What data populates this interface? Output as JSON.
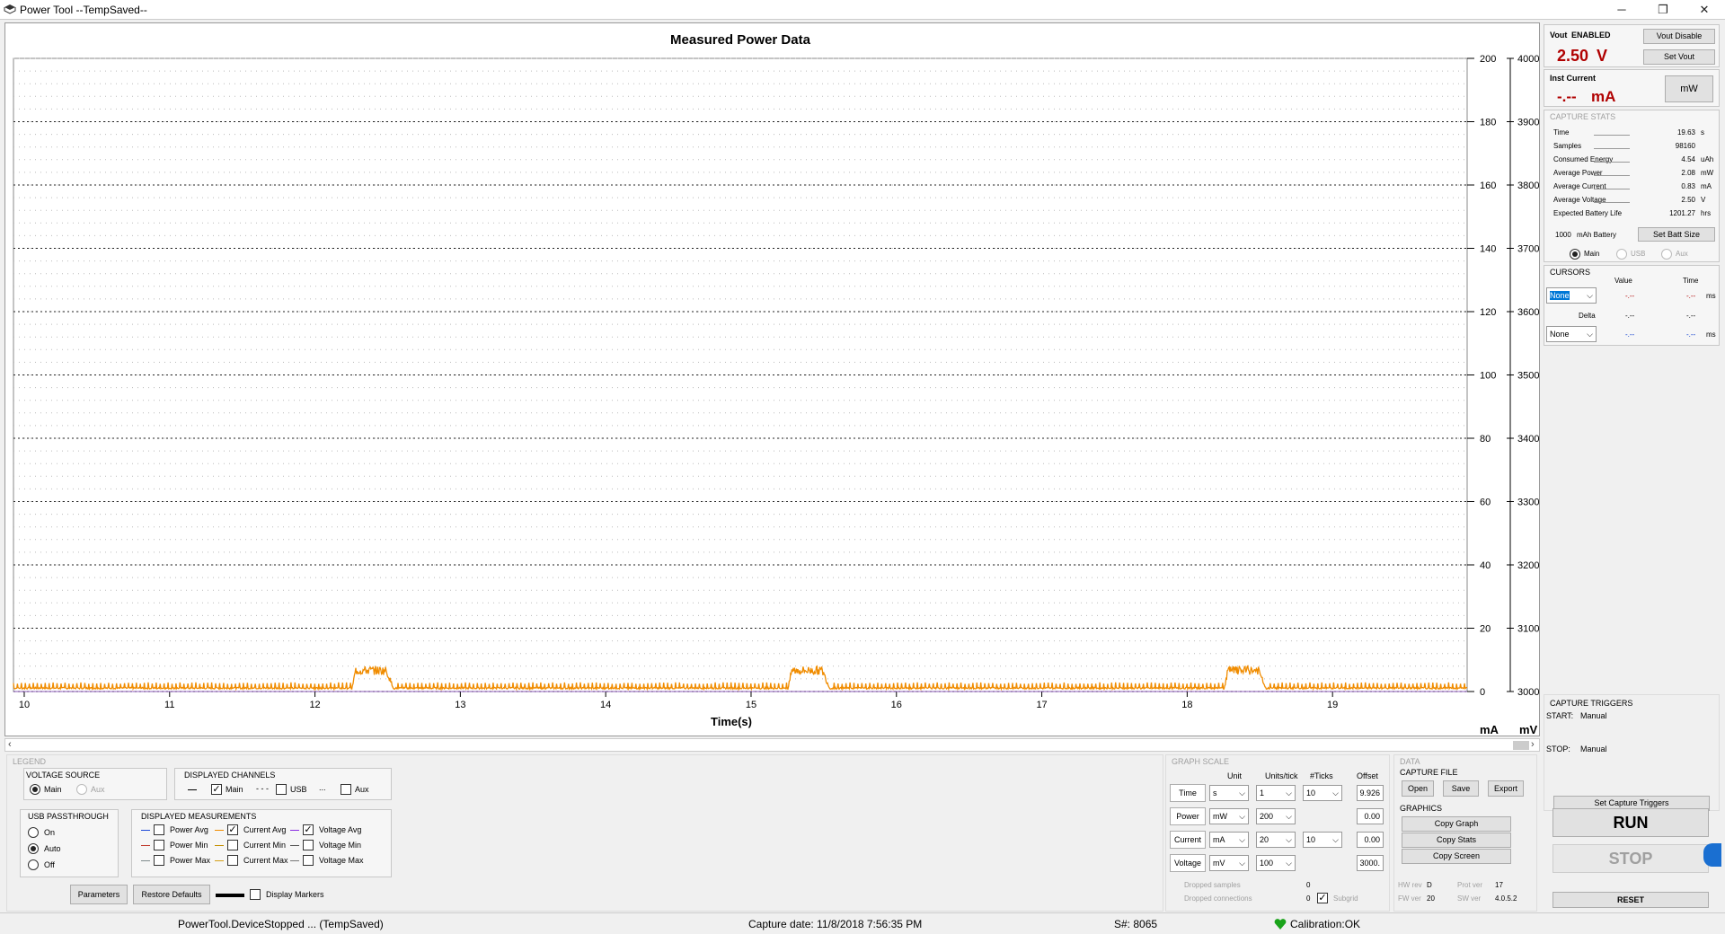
{
  "window": {
    "title": "Power Tool --TempSaved--"
  },
  "chart_data": {
    "type": "line",
    "title": "Measured Power Data",
    "xlabel": "Time(s)",
    "x_ticks": [
      "10",
      "11",
      "12",
      "13",
      "14",
      "15",
      "16",
      "17",
      "18",
      "19"
    ],
    "xlim": [
      9.926,
      19.926
    ],
    "y_left_ticks": [
      "200",
      "180",
      "160",
      "140",
      "120",
      "100",
      "80",
      "60",
      "40",
      "20",
      "0"
    ],
    "y_right_ticks": [
      "4000",
      "3900",
      "3800",
      "3700",
      "3600",
      "3500",
      "3400",
      "3300",
      "3200",
      "3100",
      "3000"
    ],
    "ylim_left": [
      0,
      200
    ],
    "ylim_right": [
      3000,
      4000
    ],
    "unit_left": "mA",
    "unit_right": "mV",
    "grid": true,
    "series": [
      {
        "name": "Current Avg",
        "color": "#f08c00",
        "baseline": 0.8,
        "bursts": [
          {
            "x": [
              12.25,
              12.55
            ],
            "peak": 7
          },
          {
            "x": [
              15.25,
              15.55
            ],
            "peak": 7
          },
          {
            "x": [
              18.25,
              18.55
            ],
            "peak": 7
          }
        ]
      },
      {
        "name": "Voltage Avg",
        "color": "#8a2be2"
      }
    ]
  },
  "vout": {
    "label": "Vout",
    "state": "ENABLED",
    "value": "2.50",
    "unit": "V",
    "disable_btn": "Vout Disable",
    "set_btn": "Set Vout"
  },
  "inst": {
    "label": "Inst Current",
    "value": "-.--",
    "unit": "mA",
    "mw_btn": "mW"
  },
  "stats": {
    "title": "CAPTURE STATS",
    "rows": [
      {
        "label": "Time",
        "value": "19.63",
        "unit": "s"
      },
      {
        "label": "Samples",
        "value": "98160",
        "unit": ""
      },
      {
        "label": "Consumed Energy",
        "value": "4.54",
        "unit": "uAh"
      },
      {
        "label": "Average Power",
        "value": "2.08",
        "unit": "mW"
      },
      {
        "label": "Average Current",
        "value": "0.83",
        "unit": "mA"
      },
      {
        "label": "Average Voltage",
        "value": "2.50",
        "unit": "V"
      },
      {
        "label": "Expected Battery Life",
        "value": "1201.27",
        "unit": "hrs"
      }
    ],
    "battery": "1000",
    "battery_unit": "mAh Battery",
    "batt_btn": "Set Batt Size",
    "radio_main": "Main",
    "radio_usb": "USB",
    "radio_aux": "Aux"
  },
  "cursors": {
    "title": "CURSORS",
    "col_value": "Value",
    "col_time": "Time",
    "sel1": "None",
    "sel2": "None",
    "val": "-.--",
    "time": "-.--",
    "unit": "ms",
    "delta": "Delta",
    "dval": "-.--",
    "dtime": "-.--"
  },
  "triggers": {
    "title": "CAPTURE TRIGGERS",
    "start_label": "START:",
    "start": "Manual",
    "stop_label": "STOP:",
    "stop": "Manual",
    "btn": "Set Capture Triggers"
  },
  "run": "RUN",
  "stop": "STOP",
  "reset": "RESET",
  "legend": {
    "title": "LEGEND",
    "vsrc": "VOLTAGE SOURCE",
    "vsrc_main": "Main",
    "vsrc_aux": "Aux",
    "channels": "DISPLAYED CHANNELS",
    "ch_main": "Main",
    "ch_usb": "USB",
    "ch_aux": "Aux",
    "usb": "USB PASSTHROUGH",
    "usb_on": "On",
    "usb_auto": "Auto",
    "usb_off": "Off",
    "meas": "DISPLAYED MEASUREMENTS",
    "m": [
      "Power Avg",
      "Power Min",
      "Power Max",
      "Current Avg",
      "Current Min",
      "Current Max",
      "Voltage Avg",
      "Voltage Min",
      "Voltage Max"
    ],
    "params_btn": "Parameters",
    "restore_btn": "Restore Defaults",
    "markers": "Display Markers"
  },
  "scale": {
    "title": "GRAPH SCALE",
    "h_unit": "Unit",
    "h_upt": "Units/tick",
    "h_ticks": "#Ticks",
    "h_offset": "Offset",
    "rows": [
      {
        "label": "Time",
        "unit": "s",
        "upt": "1",
        "ticks": "10",
        "offset": "9.926"
      },
      {
        "label": "Power",
        "unit": "mW",
        "upt": "200",
        "ticks": "",
        "offset": "0.00"
      },
      {
        "label": "Current",
        "unit": "mA",
        "upt": "20",
        "ticks": "10",
        "offset": "0.00"
      },
      {
        "label": "Voltage",
        "unit": "mV",
        "upt": "100",
        "ticks": "",
        "offset": "3000."
      }
    ],
    "dropped_samples": "Dropped samples",
    "dropped_samples_v": "0",
    "dropped_conn": "Dropped connections",
    "dropped_conn_v": "0",
    "subgrid": "Subgrid"
  },
  "data": {
    "title": "DATA",
    "capture_file": "CAPTURE FILE",
    "open": "Open",
    "save": "Save",
    "export": "Export",
    "graphics": "GRAPHICS",
    "copy_graph": "Copy Graph",
    "copy_stats": "Copy Stats",
    "copy_screen": "Copy Screen",
    "hw_label": "HW rev",
    "hw": "D",
    "prot_label": "Prot ver",
    "prot": "17",
    "fw_label": "FW ver",
    "fw": "20",
    "sw_label": "SW ver",
    "sw": "4.0.5.2"
  },
  "status": {
    "left": "PowerTool.DeviceStopped ... (TempSaved)",
    "capture": "Capture date: 11/8/2018 7:56:35 PM",
    "serial": "S#: 8065",
    "calib": "Calibration:OK"
  }
}
